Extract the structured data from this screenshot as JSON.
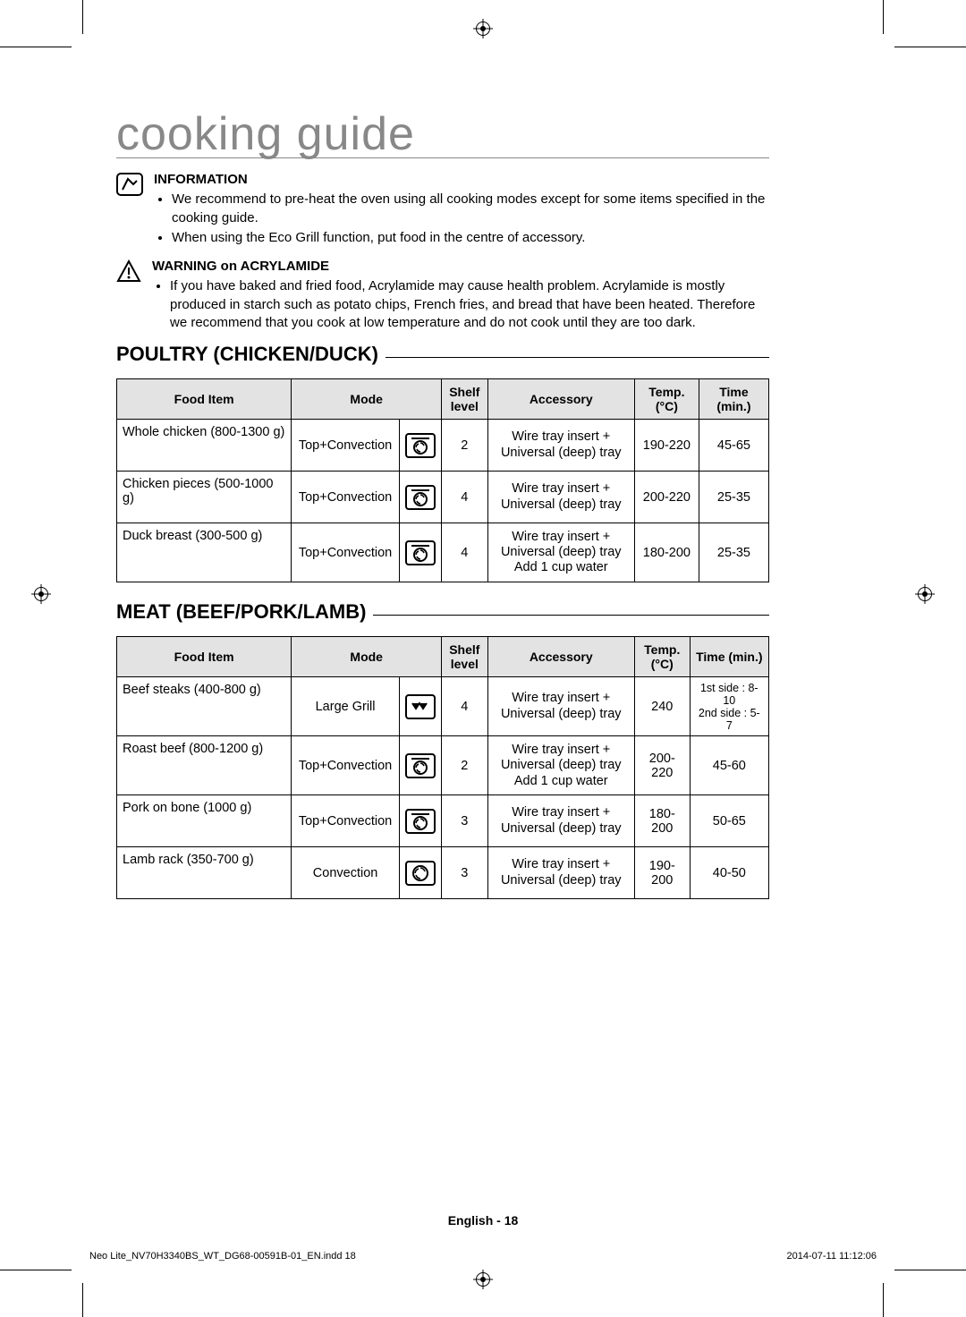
{
  "title": "cooking guide",
  "info": {
    "heading": "INFORMATION",
    "bullets": [
      "We recommend to pre-heat the oven using all cooking modes except for some items specified in the cooking guide.",
      "When using the Eco Grill function, put food in the centre of accessory."
    ]
  },
  "warning": {
    "heading": "WARNING on ACRYLAMIDE",
    "bullets": [
      "If you have baked and fried food, Acrylamide may cause health problem. Acrylamide is mostly produced in starch such as potato chips, French fries, and bread that have been heated. Therefore we recommend that you cook at low temperature and do not cook until they are too dark."
    ]
  },
  "section1": {
    "title": "POULTRY (CHICKEN/DUCK)",
    "headers": {
      "food": "Food Item",
      "mode": "Mode",
      "shelf": "Shelf level",
      "accessory": "Accessory",
      "temp": "Temp. (°C)",
      "time": "Time (min.)"
    },
    "rows": [
      {
        "food": "Whole chicken (800-1300 g)",
        "mode": "Top+Convection",
        "mode_icon": "top-convection",
        "shelf": "2",
        "accessory": "Wire tray insert + Universal (deep) tray",
        "temp": "190-220",
        "time": "45-65"
      },
      {
        "food": "Chicken pieces (500-1000 g)",
        "mode": "Top+Convection",
        "mode_icon": "top-convection",
        "shelf": "4",
        "accessory": "Wire tray insert + Universal (deep) tray",
        "temp": "200-220",
        "time": "25-35"
      },
      {
        "food": "Duck breast (300-500 g)",
        "mode": "Top+Convection",
        "mode_icon": "top-convection",
        "shelf": "4",
        "accessory": "Wire tray insert + Universal (deep) tray Add 1 cup water",
        "temp": "180-200",
        "time": "25-35"
      }
    ]
  },
  "section2": {
    "title": "MEAT (BEEF/PORK/LAMB)",
    "headers": {
      "food": "Food Item",
      "mode": "Mode",
      "shelf": "Shelf level",
      "accessory": "Accessory",
      "temp": "Temp. (°C)",
      "time": "Time (min.)"
    },
    "rows": [
      {
        "food": "Beef steaks (400-800 g)",
        "mode": "Large Grill",
        "mode_icon": "large-grill",
        "shelf": "4",
        "accessory": "Wire tray insert + Universal (deep) tray",
        "temp": "240",
        "time": "1st side : 8-10 2nd side : 5-7"
      },
      {
        "food": "Roast beef (800-1200 g)",
        "mode": "Top+Convection",
        "mode_icon": "top-convection",
        "shelf": "2",
        "accessory": "Wire tray insert + Universal (deep) tray Add 1 cup water",
        "temp": "200-220",
        "time": "45-60"
      },
      {
        "food": "Pork on bone (1000 g)",
        "mode": "Top+Convection",
        "mode_icon": "top-convection",
        "shelf": "3",
        "accessory": "Wire tray insert + Universal (deep) tray",
        "temp": "180-200",
        "time": "50-65"
      },
      {
        "food": "Lamb rack (350-700 g)",
        "mode": "Convection",
        "mode_icon": "convection",
        "shelf": "3",
        "accessory": "Wire tray insert + Universal (deep) tray",
        "temp": "190-200",
        "time": "40-50"
      }
    ]
  },
  "footer": "English - 18",
  "imprint": {
    "file": "Neo Lite_NV70H3340BS_WT_DG68-00591B-01_EN.indd   18",
    "stamp": "2014-07-11   11:12:06"
  },
  "colors": {
    "title_text": "#888888",
    "header_bg": "#e3e3e3",
    "border": "#000000",
    "page_bg": "#ffffff"
  }
}
